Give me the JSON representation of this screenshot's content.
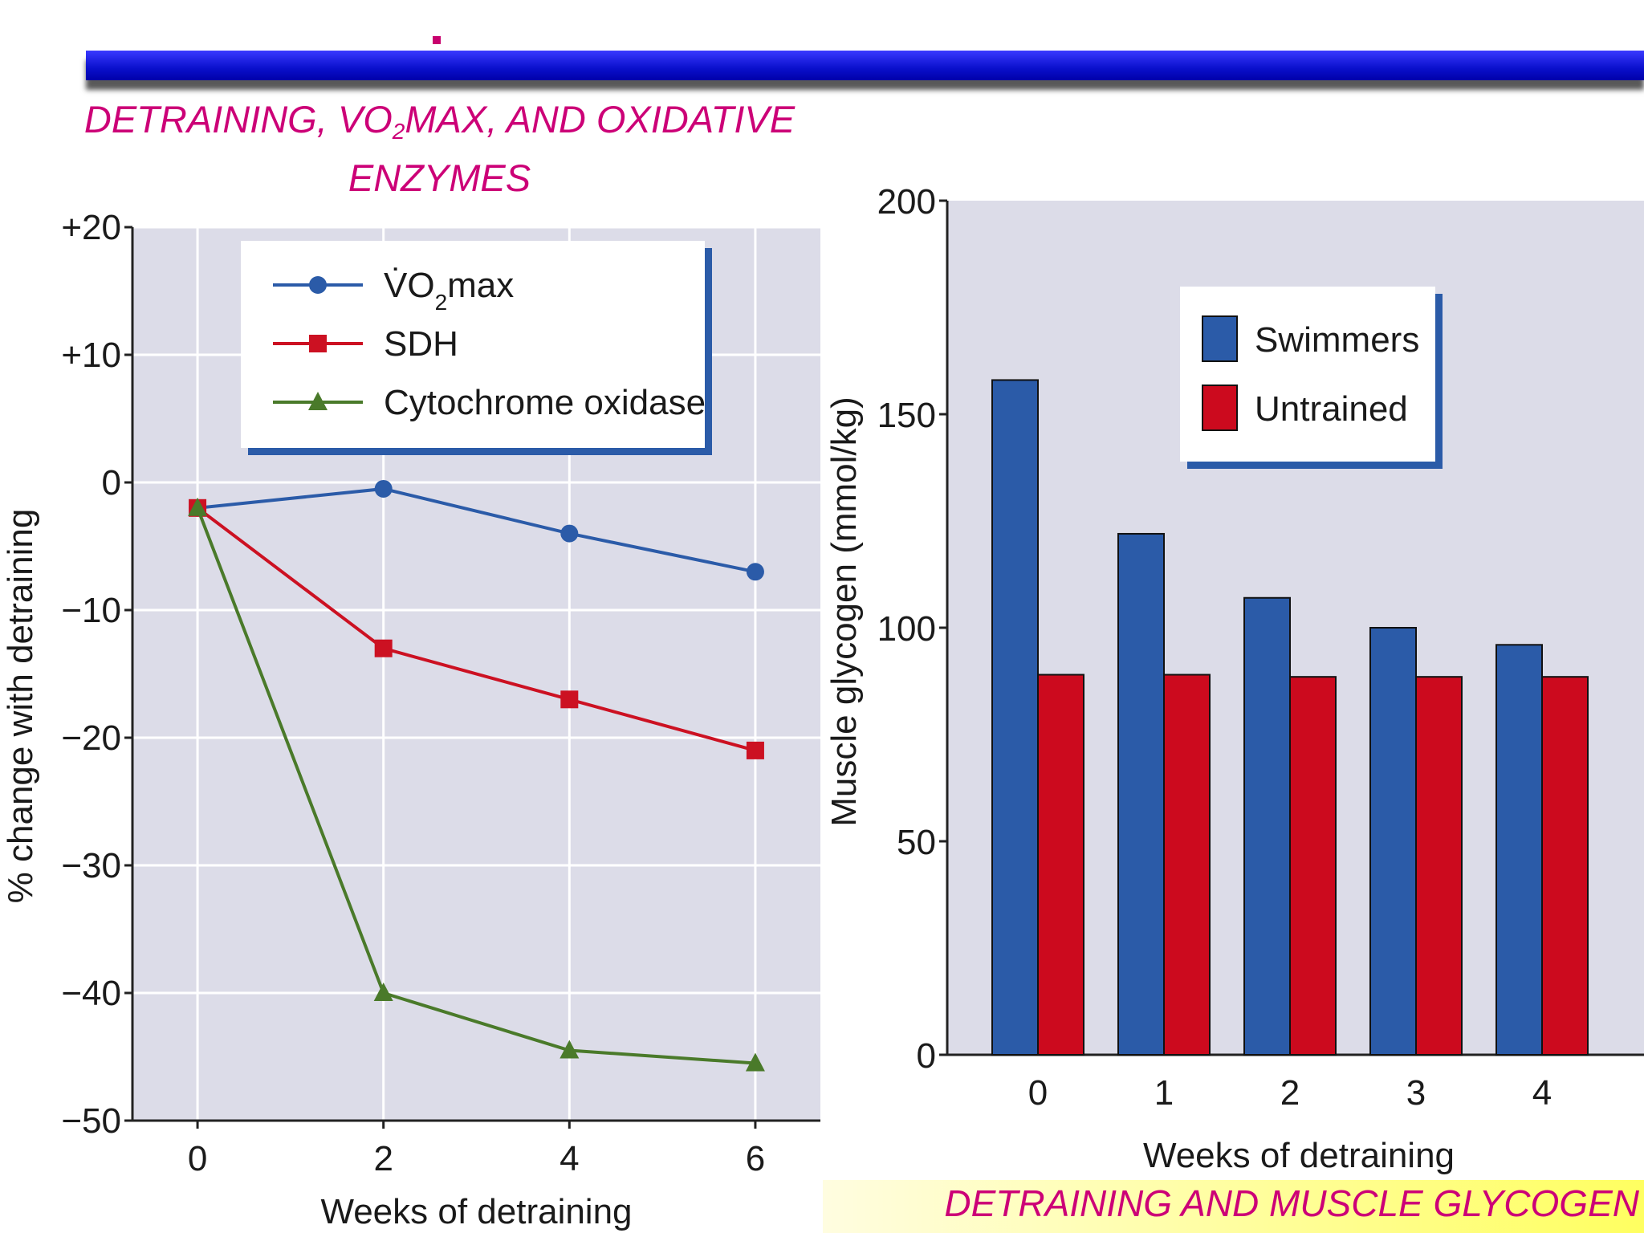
{
  "slide": {
    "title_left_pre": "DETRAINING, VO",
    "title_left_sub": "2",
    "title_left_post": "MAX, AND OXIDATIVE ENZYMES",
    "caption_right": "DETRAINING AND MUSCLE GLYCOGEN",
    "accent_color": "#cc0077",
    "bar_color": "#1010dd"
  },
  "chart_data": [
    {
      "type": "line",
      "title": "",
      "xlabel": "Weeks of detraining",
      "ylabel": "% change with detraining",
      "x": [
        0,
        2,
        4,
        6
      ],
      "xticks": [
        "0",
        "2",
        "4",
        "6"
      ],
      "xlim": [
        -0.7,
        6.7
      ],
      "ylim": [
        -50,
        20
      ],
      "yticks": [
        "+20",
        "+10",
        "0",
        "−10",
        "−20",
        "−30",
        "−40",
        "−50"
      ],
      "ytick_values": [
        20,
        10,
        0,
        -10,
        -20,
        -30,
        -40,
        -50
      ],
      "grid": true,
      "legend_position": "top-center",
      "series": [
        {
          "name": "V̇O",
          "name_sub": "2",
          "name_post": "max",
          "values": [
            -2,
            -0.5,
            -4,
            -7
          ],
          "color": "#2b5ba8",
          "marker": "circle"
        },
        {
          "name": "SDH",
          "values": [
            -2,
            -13,
            -17,
            -21
          ],
          "color": "#cc1122",
          "marker": "square"
        },
        {
          "name": "Cytochrome oxidase",
          "values": [
            -2,
            -40,
            -44.5,
            -45.5
          ],
          "color": "#4a7a2a",
          "marker": "triangle"
        }
      ]
    },
    {
      "type": "bar",
      "title": "",
      "xlabel": "Weeks of detraining",
      "ylabel": "Muscle glycogen (mmol/kg)",
      "categories": [
        "0",
        "1",
        "2",
        "3",
        "4"
      ],
      "ylim": [
        0,
        200
      ],
      "yticks": [
        "0",
        "50",
        "100",
        "150",
        "200"
      ],
      "ytick_values": [
        0,
        50,
        100,
        150,
        200
      ],
      "grid": false,
      "legend_position": "top-right",
      "series": [
        {
          "name": "Swimmers",
          "values": [
            158,
            122,
            107,
            100,
            96
          ],
          "color": "#2b5ba8"
        },
        {
          "name": "Untrained",
          "values": [
            89,
            89,
            88.5,
            88.5,
            88.5
          ],
          "color": "#cc0a1e"
        }
      ]
    }
  ]
}
